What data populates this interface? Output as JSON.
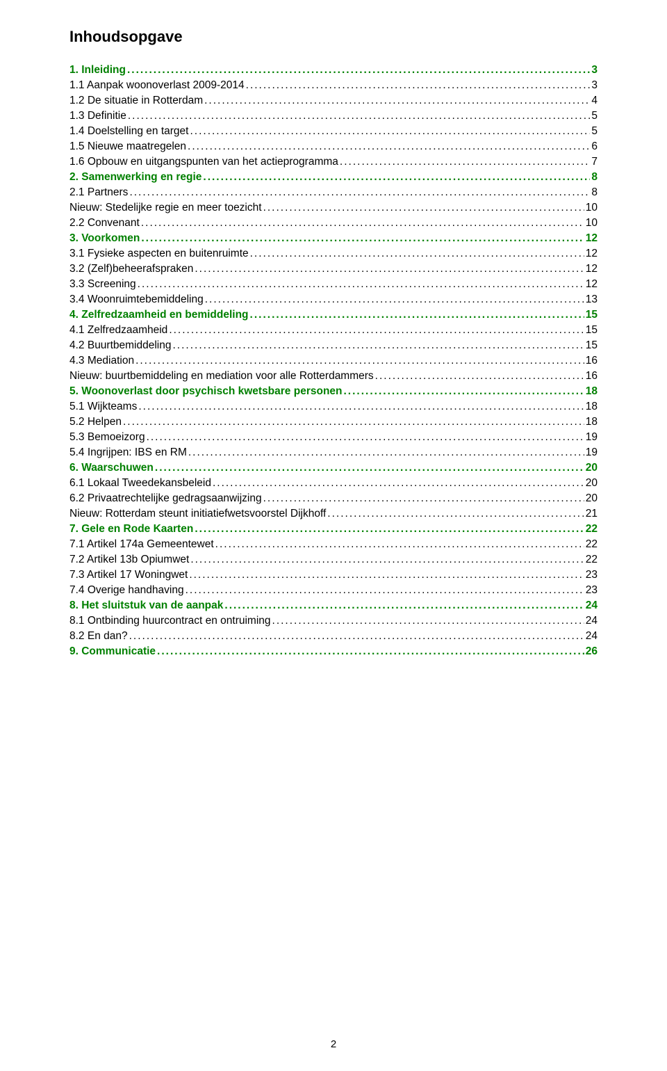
{
  "title": "Inhoudsopgave",
  "title_fontsize": 22,
  "row_fontsize": 15.5,
  "line_height": 22,
  "colors": {
    "heading": "#008000",
    "text": "#000000",
    "background": "#ffffff"
  },
  "page_number": "2",
  "page_number_fontsize": 15,
  "entries": [
    {
      "label": "1. Inleiding",
      "page": "3",
      "bold": true,
      "color": "green",
      "indent": 0
    },
    {
      "label": "1.1 Aanpak woonoverlast 2009-2014",
      "page": "3",
      "bold": false,
      "color": "black",
      "indent": 1
    },
    {
      "label": "1.2 De situatie in Rotterdam",
      "page": "4",
      "bold": false,
      "color": "black",
      "indent": 1
    },
    {
      "label": "1.3 Definitie",
      "page": "5",
      "bold": false,
      "color": "black",
      "indent": 1
    },
    {
      "label": "1.4 Doelstelling en target",
      "page": "5",
      "bold": false,
      "color": "black",
      "indent": 1
    },
    {
      "label": "1.5 Nieuwe maatregelen",
      "page": "6",
      "bold": false,
      "color": "black",
      "indent": 1
    },
    {
      "label": "1.6 Opbouw en uitgangspunten van het actieprogramma",
      "page": "7",
      "bold": false,
      "color": "black",
      "indent": 1
    },
    {
      "label": "2. Samenwerking en regie",
      "page": "8",
      "bold": true,
      "color": "green",
      "indent": 0
    },
    {
      "label": "2.1 Partners",
      "page": "8",
      "bold": false,
      "color": "black",
      "indent": 1
    },
    {
      "label": "Nieuw: Stedelijke regie en meer toezicht",
      "page": "10",
      "bold": false,
      "color": "black",
      "indent": 1
    },
    {
      "label": "2.2 Convenant",
      "page": "10",
      "bold": false,
      "color": "black",
      "indent": 1
    },
    {
      "label": "3. Voorkomen",
      "page": "12",
      "bold": true,
      "color": "green",
      "indent": 0
    },
    {
      "label": "3.1 Fysieke aspecten en buitenruimte",
      "page": "12",
      "bold": false,
      "color": "black",
      "indent": 1
    },
    {
      "label": "3.2 (Zelf)beheerafspraken",
      "page": "12",
      "bold": false,
      "color": "black",
      "indent": 1
    },
    {
      "label": "3.3 Screening",
      "page": "12",
      "bold": false,
      "color": "black",
      "indent": 1
    },
    {
      "label": "3.4 Woonruimtebemiddeling",
      "page": "13",
      "bold": false,
      "color": "black",
      "indent": 1
    },
    {
      "label": "4. Zelfredzaamheid en bemiddeling",
      "page": "15",
      "bold": true,
      "color": "green",
      "indent": 0
    },
    {
      "label": "4.1 Zelfredzaamheid",
      "page": "15",
      "bold": false,
      "color": "black",
      "indent": 1
    },
    {
      "label": "4.2 Buurtbemiddeling",
      "page": "15",
      "bold": false,
      "color": "black",
      "indent": 1
    },
    {
      "label": "4.3 Mediation",
      "page": "16",
      "bold": false,
      "color": "black",
      "indent": 1
    },
    {
      "label": "Nieuw: buurtbemiddeling en mediation voor alle Rotterdammers",
      "page": "16",
      "bold": false,
      "color": "black",
      "indent": 1
    },
    {
      "label": "5. Woonoverlast door psychisch kwetsbare personen",
      "page": "18",
      "bold": true,
      "color": "green",
      "indent": 0
    },
    {
      "label": "5.1 Wijkteams",
      "page": "18",
      "bold": false,
      "color": "black",
      "indent": 1
    },
    {
      "label": "5.2 Helpen",
      "page": "18",
      "bold": false,
      "color": "black",
      "indent": 1
    },
    {
      "label": "5.3 Bemoeizorg",
      "page": "19",
      "bold": false,
      "color": "black",
      "indent": 1
    },
    {
      "label": "5.4 Ingrijpen: IBS en RM",
      "page": "19",
      "bold": false,
      "color": "black",
      "indent": 1
    },
    {
      "label": "6. Waarschuwen",
      "page": "20",
      "bold": true,
      "color": "green",
      "indent": 0
    },
    {
      "label": "6.1 Lokaal Tweedekansbeleid",
      "page": "20",
      "bold": false,
      "color": "black",
      "indent": 1
    },
    {
      "label": "6.2 Privaatrechtelijke gedragsaanwijzing",
      "page": "20",
      "bold": false,
      "color": "black",
      "indent": 1
    },
    {
      "label": "Nieuw: Rotterdam steunt initiatiefwetsvoorstel Dijkhoff",
      "page": "21",
      "bold": false,
      "color": "black",
      "indent": 1
    },
    {
      "label": "7. Gele en Rode Kaarten",
      "page": "22",
      "bold": true,
      "color": "green",
      "indent": 0
    },
    {
      "label": "7.1 Artikel 174a Gemeentewet",
      "page": "22",
      "bold": false,
      "color": "black",
      "indent": 1
    },
    {
      "label": "7.2 Artikel 13b Opiumwet",
      "page": "22",
      "bold": false,
      "color": "black",
      "indent": 1
    },
    {
      "label": "7.3 Artikel 17 Woningwet",
      "page": "23",
      "bold": false,
      "color": "black",
      "indent": 1
    },
    {
      "label": "7.4 Overige handhaving",
      "page": "23",
      "bold": false,
      "color": "black",
      "indent": 1
    },
    {
      "label": "8. Het sluitstuk van de aanpak",
      "page": "24",
      "bold": true,
      "color": "green",
      "indent": 0
    },
    {
      "label": "8.1 Ontbinding huurcontract en ontruiming",
      "page": "24",
      "bold": false,
      "color": "black",
      "indent": 1
    },
    {
      "label": "8.2 En dan?",
      "page": "24",
      "bold": false,
      "color": "black",
      "indent": 1
    },
    {
      "label": "9. Communicatie",
      "page": "26",
      "bold": true,
      "color": "green",
      "indent": 0
    }
  ]
}
